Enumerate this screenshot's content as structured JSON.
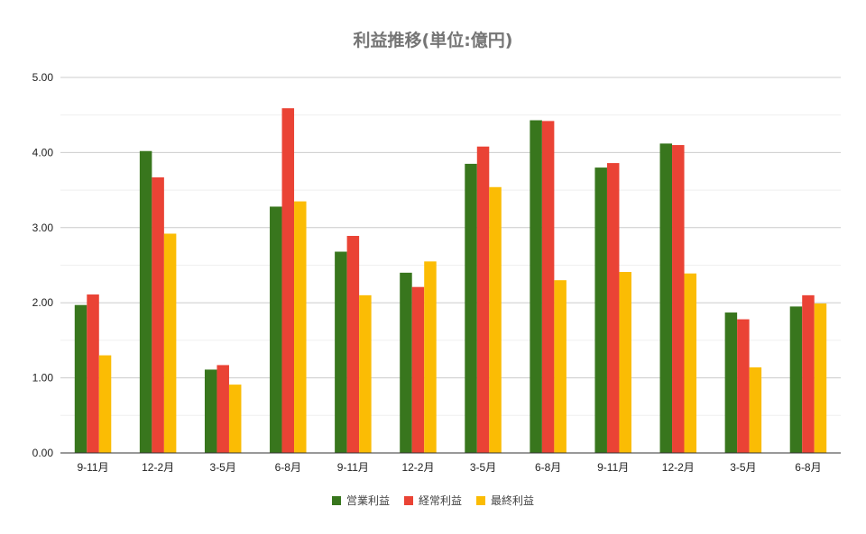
{
  "chart_data": {
    "type": "bar",
    "title": "利益推移(単位:億円)",
    "xlabel": "",
    "ylabel": "",
    "categories": [
      "9-11月",
      "12-2月",
      "3-5月",
      "6-8月",
      "9-11月",
      "12-2月",
      "3-5月",
      "6-8月",
      "9-11月",
      "12-2月",
      "3-5月",
      "6-8月"
    ],
    "series": [
      {
        "name": "営業利益",
        "color": "#38761d",
        "values": [
          1.97,
          4.02,
          1.11,
          3.28,
          2.68,
          2.4,
          3.85,
          4.43,
          3.8,
          4.12,
          1.87,
          1.95
        ]
      },
      {
        "name": "経常利益",
        "color": "#ea4335",
        "values": [
          2.11,
          3.67,
          1.17,
          4.59,
          2.89,
          2.21,
          4.08,
          4.42,
          3.86,
          4.1,
          1.78,
          2.1
        ]
      },
      {
        "name": "最終利益",
        "color": "#fbbc04",
        "values": [
          1.3,
          2.92,
          0.91,
          3.35,
          2.1,
          2.55,
          3.54,
          2.3,
          2.41,
          2.39,
          1.14,
          1.99
        ]
      }
    ],
    "ylim": [
      0,
      5
    ],
    "yticks": [
      "0.00",
      "1.00",
      "2.00",
      "3.00",
      "4.00",
      "5.00"
    ],
    "grid": true,
    "legend_position": "bottom"
  }
}
